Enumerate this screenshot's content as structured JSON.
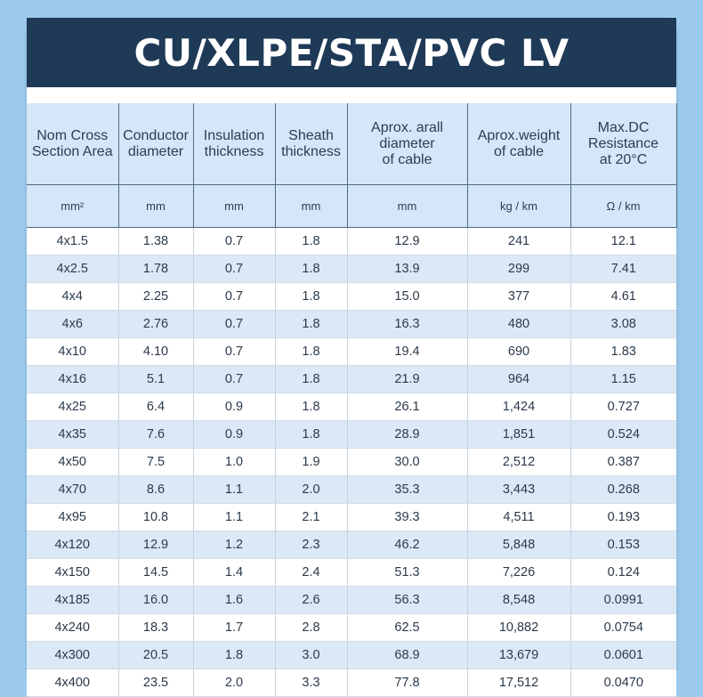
{
  "title": "CU/XLPE/STA/PVC LV",
  "table": {
    "headers": [
      "Nom Cross\nSection Area",
      "Conductor\ndiameter",
      "Insulation\nthickness",
      "Sheath\nthickness",
      "Aprox. arall\ndiameter\nof cable",
      "Aprox.weight\nof cable",
      "Max.DC\nResistance\nat 20°C"
    ],
    "units": [
      "mm²",
      "mm",
      "mm",
      "mm",
      "mm",
      "kg / km",
      "Ω / km"
    ],
    "rows": [
      [
        "4x1.5",
        "1.38",
        "0.7",
        "1.8",
        "12.9",
        "241",
        "12.1"
      ],
      [
        "4x2.5",
        "1.78",
        "0.7",
        "1.8",
        "13.9",
        "299",
        "7.41"
      ],
      [
        "4x4",
        "2.25",
        "0.7",
        "1.8",
        "15.0",
        "377",
        "4.61"
      ],
      [
        "4x6",
        "2.76",
        "0.7",
        "1.8",
        "16.3",
        "480",
        "3.08"
      ],
      [
        "4x10",
        "4.10",
        "0.7",
        "1.8",
        "19.4",
        "690",
        "1.83"
      ],
      [
        "4x16",
        "5.1",
        "0.7",
        "1.8",
        "21.9",
        "964",
        "1.15"
      ],
      [
        "4x25",
        "6.4",
        "0.9",
        "1.8",
        "26.1",
        "1,424",
        "0.727"
      ],
      [
        "4x35",
        "7.6",
        "0.9",
        "1.8",
        "28.9",
        "1,851",
        "0.524"
      ],
      [
        "4x50",
        "7.5",
        "1.0",
        "1.9",
        "30.0",
        "2,512",
        "0.387"
      ],
      [
        "4x70",
        "8.6",
        "1.1",
        "2.0",
        "35.3",
        "3,443",
        "0.268"
      ],
      [
        "4x95",
        "10.8",
        "1.1",
        "2.1",
        "39.3",
        "4,511",
        "0.193"
      ],
      [
        "4x120",
        "12.9",
        "1.2",
        "2.3",
        "46.2",
        "5,848",
        "0.153"
      ],
      [
        "4x150",
        "14.5",
        "1.4",
        "2.4",
        "51.3",
        "7,226",
        "0.124"
      ],
      [
        "4x185",
        "16.0",
        "1.6",
        "2.6",
        "56.3",
        "8,548",
        "0.0991"
      ],
      [
        "4x240",
        "18.3",
        "1.7",
        "2.8",
        "62.5",
        "10,882",
        "0.0754"
      ],
      [
        "4x300",
        "20.5",
        "1.8",
        "3.0",
        "68.9",
        "13,679",
        "0.0601"
      ],
      [
        "4x400",
        "23.5",
        "2.0",
        "3.3",
        "77.8",
        "17,512",
        "0.0470"
      ]
    ]
  },
  "colors": {
    "page_background": "#9ccbee",
    "title_bar": "#1f3a57",
    "header_fill": "#d4e6f7",
    "row_alt_fill": "#dbe9f6"
  }
}
